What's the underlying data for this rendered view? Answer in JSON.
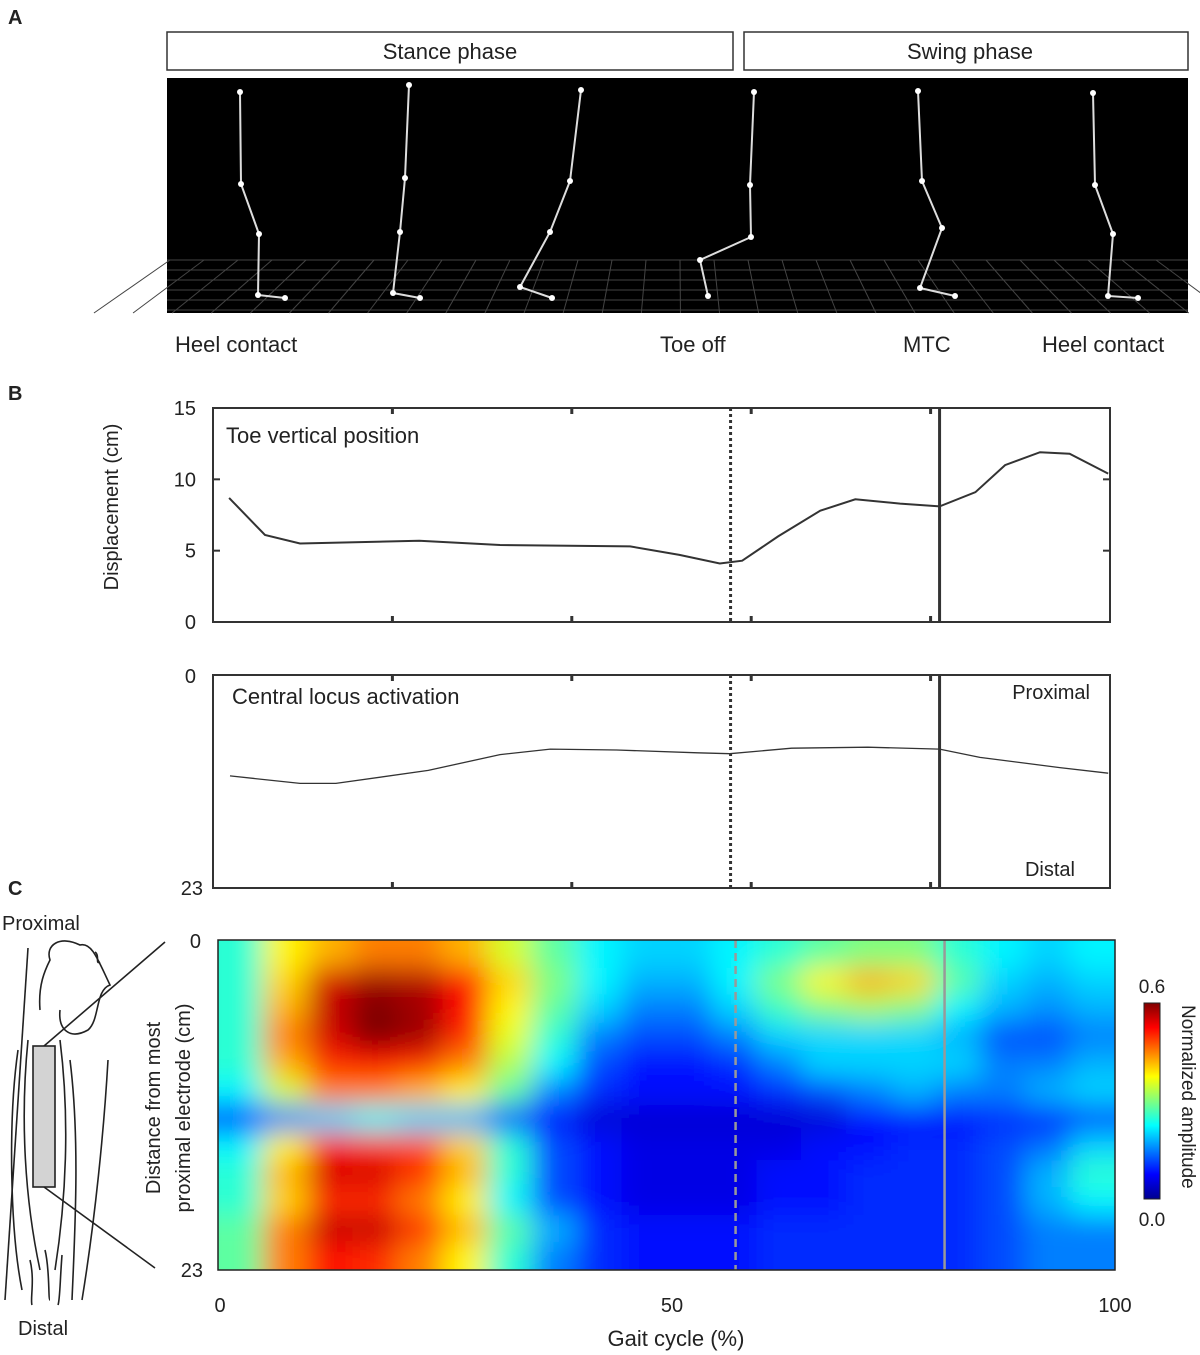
{
  "panels": {
    "a": "A",
    "b": "B",
    "c": "C"
  },
  "phases": {
    "stance": "Stance phase",
    "swing": "Swing phase"
  },
  "events": [
    "Heel contact",
    "Toe off",
    "MTC",
    "Heel contact"
  ],
  "colors": {
    "background_A": "#000000",
    "skeleton": "#ffffff",
    "curve": "#333333",
    "grid": "#555555"
  },
  "chart_data": [
    {
      "type": "line",
      "title": "Toe vertical position",
      "ylabel": "Displacement (cm)",
      "ylim": [
        0,
        15
      ],
      "yticks": [
        "0",
        "5",
        "10",
        "15"
      ],
      "xlim": [
        0,
        100
      ],
      "vlines": [
        {
          "x": 57.7,
          "style": "dotted",
          "event": "Toe off"
        },
        {
          "x": 81,
          "style": "solid",
          "event": "MTC"
        }
      ],
      "x": [
        1.8,
        5.8,
        9.7,
        23,
        32,
        46.5,
        52,
        56.5,
        59,
        63,
        67.7,
        71.6,
        76.6,
        81,
        85,
        88.3,
        92.2,
        95.5,
        99.8
      ],
      "y": [
        8.7,
        6.1,
        5.5,
        5.7,
        5.4,
        5.3,
        4.7,
        4.1,
        4.3,
        6.0,
        7.8,
        8.6,
        8.3,
        8.1,
        9.1,
        11.0,
        11.9,
        11.8,
        10.4
      ]
    },
    {
      "type": "line",
      "title": "Central locus activation",
      "ylim": [
        0,
        23
      ],
      "yticks": [
        "0",
        "23"
      ],
      "annotations": {
        "top": "Proximal",
        "bottom": "Distal"
      },
      "xlim": [
        0,
        100
      ],
      "vlines": [
        {
          "x": 57.7,
          "style": "dotted"
        },
        {
          "x": 81,
          "style": "solid"
        }
      ],
      "x": [
        1.9,
        9.7,
        13.7,
        24,
        32,
        37.6,
        45,
        54,
        57.6,
        64.5,
        73,
        81,
        85.5,
        94.4,
        99.8
      ],
      "y": [
        10.9,
        11.7,
        11.7,
        10.3,
        8.6,
        8.0,
        8.1,
        8.4,
        8.5,
        7.9,
        7.8,
        8.0,
        8.9,
        10.0,
        10.6
      ]
    },
    {
      "type": "heatmap",
      "xlabel": "Gait cycle (%)",
      "ylabel_line1": "Distance from most",
      "ylabel_line2": "proximal electrode (cm)",
      "xlim": [
        0,
        100
      ],
      "ylim": [
        0,
        23
      ],
      "xticks": [
        "0",
        "50",
        "100"
      ],
      "yticks": [
        "0",
        "23"
      ],
      "colorbar": {
        "label": "Normalized amplitude",
        "min": "0.0",
        "max": "0.6",
        "colormap": "jet"
      },
      "vlines": [
        {
          "x": 57.7,
          "style": "dashed",
          "color": "#999999"
        },
        {
          "x": 81,
          "style": "solid",
          "color": "#999999"
        }
      ],
      "anatomy": {
        "top": "Proximal",
        "bottom": "Distal"
      },
      "values": [
        [
          0.25,
          0.38,
          0.42,
          0.45,
          0.45,
          0.42,
          0.35,
          0.28,
          0.22,
          0.2,
          0.2,
          0.22,
          0.25,
          0.28,
          0.3,
          0.3,
          0.25,
          0.22,
          0.2,
          0.22
        ],
        [
          0.25,
          0.4,
          0.55,
          0.58,
          0.57,
          0.52,
          0.4,
          0.3,
          0.22,
          0.18,
          0.18,
          0.22,
          0.3,
          0.38,
          0.42,
          0.4,
          0.28,
          0.2,
          0.18,
          0.2
        ],
        [
          0.25,
          0.42,
          0.56,
          0.6,
          0.58,
          0.52,
          0.38,
          0.28,
          0.2,
          0.15,
          0.15,
          0.2,
          0.26,
          0.3,
          0.32,
          0.3,
          0.22,
          0.18,
          0.16,
          0.18
        ],
        [
          0.25,
          0.45,
          0.55,
          0.6,
          0.58,
          0.5,
          0.36,
          0.25,
          0.15,
          0.12,
          0.12,
          0.15,
          0.2,
          0.2,
          0.2,
          0.2,
          0.18,
          0.12,
          0.12,
          0.15
        ],
        [
          0.25,
          0.42,
          0.5,
          0.52,
          0.5,
          0.45,
          0.33,
          0.22,
          0.12,
          0.08,
          0.08,
          0.1,
          0.15,
          0.2,
          0.2,
          0.2,
          0.2,
          0.15,
          0.15,
          0.18
        ],
        [
          0.22,
          0.35,
          0.45,
          0.45,
          0.42,
          0.38,
          0.28,
          0.15,
          0.1,
          0.08,
          0.08,
          0.08,
          0.1,
          0.12,
          0.15,
          0.18,
          0.15,
          0.15,
          0.18,
          0.2
        ],
        [
          0.1,
          0.15,
          0.2,
          0.22,
          0.2,
          0.18,
          0.12,
          0.08,
          0.05,
          0.05,
          0.05,
          0.05,
          0.05,
          0.05,
          0.08,
          0.08,
          0.08,
          0.1,
          0.1,
          0.12
        ],
        [
          0.22,
          0.38,
          0.52,
          0.5,
          0.48,
          0.4,
          0.25,
          0.12,
          0.08,
          0.06,
          0.06,
          0.06,
          0.06,
          0.08,
          0.08,
          0.1,
          0.1,
          0.12,
          0.14,
          0.2
        ],
        [
          0.25,
          0.42,
          0.55,
          0.55,
          0.5,
          0.42,
          0.25,
          0.12,
          0.08,
          0.06,
          0.06,
          0.06,
          0.08,
          0.08,
          0.1,
          0.1,
          0.1,
          0.12,
          0.18,
          0.25
        ],
        [
          0.25,
          0.4,
          0.5,
          0.5,
          0.45,
          0.38,
          0.22,
          0.12,
          0.08,
          0.06,
          0.06,
          0.06,
          0.08,
          0.08,
          0.1,
          0.1,
          0.1,
          0.12,
          0.18,
          0.22
        ],
        [
          0.28,
          0.45,
          0.56,
          0.56,
          0.5,
          0.42,
          0.28,
          0.18,
          0.1,
          0.08,
          0.08,
          0.08,
          0.1,
          0.1,
          0.1,
          0.1,
          0.1,
          0.12,
          0.15,
          0.15
        ],
        [
          0.28,
          0.45,
          0.52,
          0.5,
          0.45,
          0.38,
          0.25,
          0.15,
          0.1,
          0.08,
          0.08,
          0.08,
          0.1,
          0.1,
          0.1,
          0.1,
          0.1,
          0.12,
          0.15,
          0.15
        ]
      ]
    }
  ]
}
